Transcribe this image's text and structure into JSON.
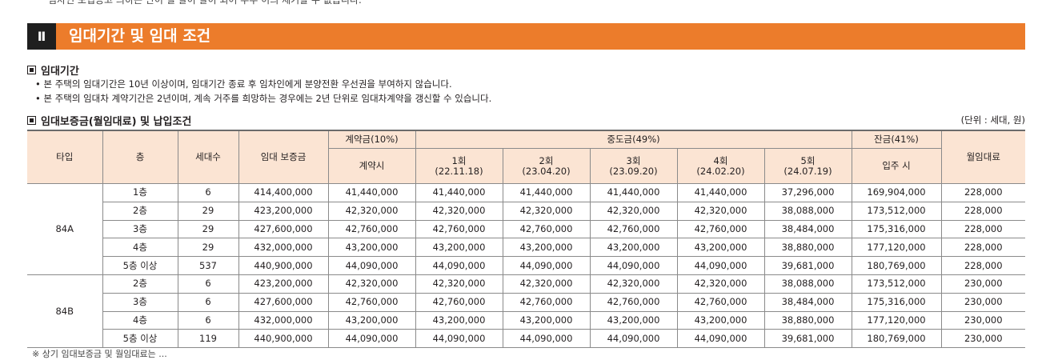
{
  "top_cut_text": "임차인 모집공고 의하는 단이 철 말이 말이 되어 우주 이의 제기할 수 없습니다.",
  "section": {
    "number": "Ⅱ",
    "title": "임대기간 및 임대 조건"
  },
  "period": {
    "heading": "임대기간",
    "bullets": [
      "본 주택의 임대기간은 10년 이상이며, 임대기간 종료 후 임차인에게 분양전환 우선권을 부여하지 않습니다.",
      "본 주택의 임대차 계약기간은 2년이며, 계속 거주를 희망하는 경우에는 2년 단위로 임대차계약을 갱신할 수 있습니다."
    ]
  },
  "deposit": {
    "heading": "임대보증금(월임대료) 및 납입조건",
    "unit": "(단위 : 세대, 원)",
    "headers": {
      "type": "타입",
      "floor": "층",
      "households": "세대수",
      "deposit": "임대 보증금",
      "contract_group": "계약금(10%)",
      "contract_sub": "계약시",
      "middle_group": "중도금(49%)",
      "middle": [
        {
          "label": "1회",
          "date": "(22.11.18)"
        },
        {
          "label": "2회",
          "date": "(23.04.20)"
        },
        {
          "label": "3회",
          "date": "(23.09.20)"
        },
        {
          "label": "4회",
          "date": "(24.02.20)"
        },
        {
          "label": "5회",
          "date": "(24.07.19)"
        }
      ],
      "balance_group": "잔금(41%)",
      "balance_sub": "입주 시",
      "monthly": "월임대료"
    },
    "groups": [
      {
        "type": "84A",
        "rows": [
          {
            "floor": "1층",
            "households": "6",
            "deposit": "414,400,000",
            "contract": "41,440,000",
            "m1": "41,440,000",
            "m2": "41,440,000",
            "m3": "41,440,000",
            "m4": "41,440,000",
            "m5": "37,296,000",
            "balance": "169,904,000",
            "monthly": "228,000"
          },
          {
            "floor": "2층",
            "households": "29",
            "deposit": "423,200,000",
            "contract": "42,320,000",
            "m1": "42,320,000",
            "m2": "42,320,000",
            "m3": "42,320,000",
            "m4": "42,320,000",
            "m5": "38,088,000",
            "balance": "173,512,000",
            "monthly": "228,000"
          },
          {
            "floor": "3층",
            "households": "29",
            "deposit": "427,600,000",
            "contract": "42,760,000",
            "m1": "42,760,000",
            "m2": "42,760,000",
            "m3": "42,760,000",
            "m4": "42,760,000",
            "m5": "38,484,000",
            "balance": "175,316,000",
            "monthly": "228,000"
          },
          {
            "floor": "4층",
            "households": "29",
            "deposit": "432,000,000",
            "contract": "43,200,000",
            "m1": "43,200,000",
            "m2": "43,200,000",
            "m3": "43,200,000",
            "m4": "43,200,000",
            "m5": "38,880,000",
            "balance": "177,120,000",
            "monthly": "228,000"
          },
          {
            "floor": "5층 이상",
            "households": "537",
            "deposit": "440,900,000",
            "contract": "44,090,000",
            "m1": "44,090,000",
            "m2": "44,090,000",
            "m3": "44,090,000",
            "m4": "44,090,000",
            "m5": "39,681,000",
            "balance": "180,769,000",
            "monthly": "228,000"
          }
        ]
      },
      {
        "type": "84B",
        "rows": [
          {
            "floor": "2층",
            "households": "6",
            "deposit": "423,200,000",
            "contract": "42,320,000",
            "m1": "42,320,000",
            "m2": "42,320,000",
            "m3": "42,320,000",
            "m4": "42,320,000",
            "m5": "38,088,000",
            "balance": "173,512,000",
            "monthly": "230,000"
          },
          {
            "floor": "3층",
            "households": "6",
            "deposit": "427,600,000",
            "contract": "42,760,000",
            "m1": "42,760,000",
            "m2": "42,760,000",
            "m3": "42,760,000",
            "m4": "42,760,000",
            "m5": "38,484,000",
            "balance": "175,316,000",
            "monthly": "230,000"
          },
          {
            "floor": "4층",
            "households": "6",
            "deposit": "432,000,000",
            "contract": "43,200,000",
            "m1": "43,200,000",
            "m2": "43,200,000",
            "m3": "43,200,000",
            "m4": "43,200,000",
            "m5": "38,880,000",
            "balance": "177,120,000",
            "monthly": "230,000"
          },
          {
            "floor": "5층 이상",
            "households": "119",
            "deposit": "440,900,000",
            "contract": "44,090,000",
            "m1": "44,090,000",
            "m2": "44,090,000",
            "m3": "44,090,000",
            "m4": "44,090,000",
            "m5": "39,681,000",
            "balance": "180,769,000",
            "monthly": "230,000"
          }
        ]
      }
    ]
  },
  "bottom_cut_text": "※ 상기 임대보증금 및 월임대료는 ..."
}
